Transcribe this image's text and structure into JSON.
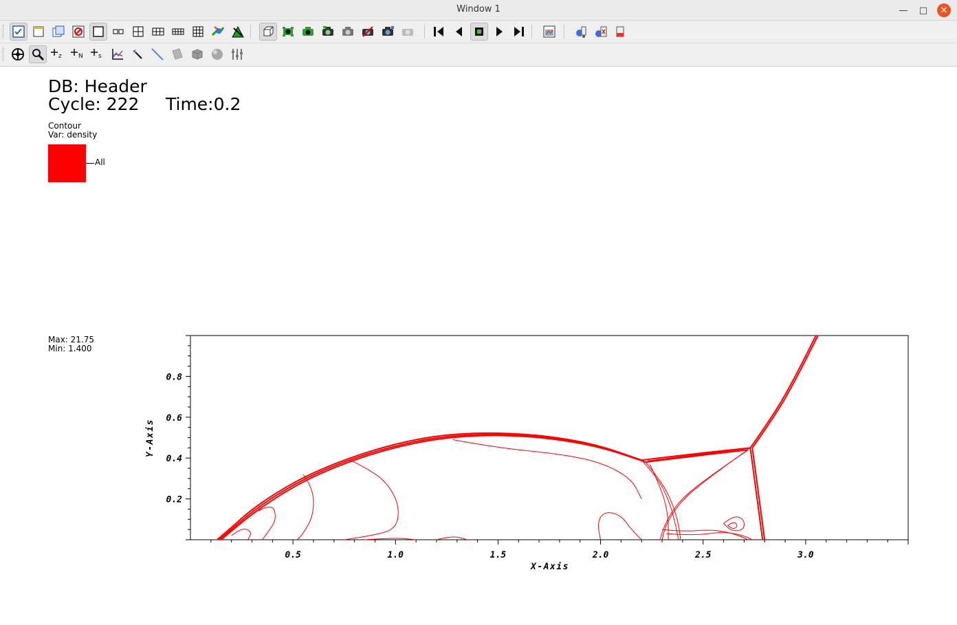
{
  "window": {
    "title": "Window 1"
  },
  "toolbar1": {
    "buttons": [
      {
        "name": "active-window-icon",
        "pressed": true
      },
      {
        "name": "new-window-icon"
      },
      {
        "name": "clone-window-icon"
      },
      {
        "name": "delete-window-icon"
      },
      {
        "name": "layout-1x1-icon",
        "pressed": true
      },
      {
        "name": "layout-1x2-icon"
      },
      {
        "name": "layout-2x2-icon"
      },
      {
        "name": "layout-2x3-icon"
      },
      {
        "name": "layout-2x4-icon"
      },
      {
        "name": "layout-3x3-icon"
      },
      {
        "name": "lock-view-icon"
      },
      {
        "name": "lock-time-icon"
      },
      {
        "name": "perspective-view-icon",
        "pressed": true
      },
      {
        "name": "draw-plots-icon"
      },
      {
        "name": "recenter-icon"
      },
      {
        "name": "save-view-icon"
      },
      {
        "name": "undo-view-icon"
      },
      {
        "name": "redo-view-icon"
      },
      {
        "name": "choose-view-icon"
      },
      {
        "name": "reset-view-icon"
      },
      {
        "name": "first-frame-icon"
      },
      {
        "name": "reverse-play-icon"
      },
      {
        "name": "stop-icon",
        "pressed": true
      },
      {
        "name": "play-icon"
      },
      {
        "name": "last-frame-icon"
      },
      {
        "name": "spin-mode-icon"
      },
      {
        "name": "invert-background-icon"
      },
      {
        "name": "mpi-engine-icon"
      },
      {
        "name": "remove-engine-icon"
      }
    ]
  },
  "toolbar2": {
    "buttons": [
      {
        "name": "navigate-mode-icon"
      },
      {
        "name": "zoom-mode-icon",
        "pressed": true
      },
      {
        "name": "zone-pick-icon",
        "label": "z"
      },
      {
        "name": "node-pick-icon",
        "label": "N"
      },
      {
        "name": "spreadsheet-pick-icon",
        "label": "s"
      },
      {
        "name": "curve-lineout-icon"
      },
      {
        "name": "point-tool-icon"
      },
      {
        "name": "line-tool-icon"
      },
      {
        "name": "plane-tool-icon"
      },
      {
        "name": "box-tool-icon"
      },
      {
        "name": "sphere-tool-icon"
      },
      {
        "name": "axis-restriction-icon"
      }
    ]
  },
  "header": {
    "db": "DB: Header",
    "cycle": "Cycle: 222",
    "time": "Time:0.2"
  },
  "legend": {
    "plot_type": "Contour",
    "var": "Var: density",
    "level_label": "All",
    "level_color": "#ff0000",
    "max": "Max: 21.75",
    "min": "Min: 1.400"
  },
  "chart_data": {
    "type": "contour",
    "xlabel": "X-Axis",
    "ylabel": "Y-Axis",
    "xlim": [
      0.0,
      3.5
    ],
    "ylim": [
      0.0,
      1.0
    ],
    "x_ticks": [
      "0.5",
      "1.0",
      "1.5",
      "2.0",
      "2.5",
      "3.0"
    ],
    "y_ticks": [
      "0.2",
      "0.4",
      "0.6",
      "0.8"
    ],
    "color": "#ff0000",
    "contours": [
      {
        "name": "bow-shock-1",
        "points": [
          [
            0.13,
            0.0
          ],
          [
            0.2,
            0.06
          ],
          [
            0.3,
            0.15
          ],
          [
            0.45,
            0.25
          ],
          [
            0.6,
            0.33
          ],
          [
            0.8,
            0.41
          ],
          [
            1.0,
            0.47
          ],
          [
            1.2,
            0.51
          ],
          [
            1.4,
            0.524
          ],
          [
            1.6,
            0.52
          ],
          [
            1.8,
            0.5
          ],
          [
            2.0,
            0.46
          ],
          [
            2.2,
            0.39
          ]
        ]
      },
      {
        "name": "bow-shock-2",
        "points": [
          [
            0.14,
            0.0
          ],
          [
            0.21,
            0.06
          ],
          [
            0.31,
            0.145
          ],
          [
            0.46,
            0.245
          ],
          [
            0.61,
            0.325
          ],
          [
            0.81,
            0.405
          ],
          [
            1.01,
            0.463
          ],
          [
            1.21,
            0.503
          ],
          [
            1.41,
            0.517
          ],
          [
            1.61,
            0.513
          ],
          [
            1.81,
            0.493
          ],
          [
            2.01,
            0.453
          ],
          [
            2.21,
            0.385
          ]
        ]
      },
      {
        "name": "bow-shock-3",
        "points": [
          [
            0.15,
            0.0
          ],
          [
            0.22,
            0.06
          ],
          [
            0.32,
            0.14
          ],
          [
            0.47,
            0.24
          ],
          [
            0.62,
            0.32
          ],
          [
            0.82,
            0.4
          ],
          [
            1.02,
            0.458
          ],
          [
            1.22,
            0.497
          ],
          [
            1.42,
            0.512
          ],
          [
            1.62,
            0.508
          ],
          [
            1.82,
            0.488
          ],
          [
            2.02,
            0.448
          ],
          [
            2.22,
            0.38
          ]
        ]
      },
      {
        "name": "upper-shock-1",
        "points": [
          [
            2.2,
            0.39
          ],
          [
            2.45,
            0.42
          ],
          [
            2.73,
            0.45
          ]
        ]
      },
      {
        "name": "upper-shock-2",
        "points": [
          [
            2.22,
            0.38
          ],
          [
            2.46,
            0.41
          ],
          [
            2.72,
            0.44
          ]
        ]
      },
      {
        "name": "upper-shock-3",
        "points": [
          [
            2.23,
            0.385
          ],
          [
            2.5,
            0.42
          ],
          [
            2.7,
            0.445
          ]
        ]
      },
      {
        "name": "oblique-shock",
        "points": [
          [
            2.73,
            0.45
          ],
          [
            2.85,
            0.62
          ],
          [
            2.95,
            0.8
          ],
          [
            3.05,
            1.0
          ]
        ]
      },
      {
        "name": "oblique-shock-b",
        "points": [
          [
            2.74,
            0.45
          ],
          [
            2.86,
            0.62
          ],
          [
            2.96,
            0.8
          ],
          [
            3.06,
            1.0
          ]
        ]
      },
      {
        "name": "mach-stem",
        "points": [
          [
            2.73,
            0.45
          ],
          [
            2.75,
            0.3
          ],
          [
            2.77,
            0.15
          ],
          [
            2.79,
            0.0
          ]
        ]
      },
      {
        "name": "mach-stem-b",
        "points": [
          [
            2.74,
            0.45
          ],
          [
            2.76,
            0.3
          ],
          [
            2.78,
            0.15
          ],
          [
            2.8,
            0.0
          ]
        ]
      },
      {
        "name": "slip-line-1",
        "points": [
          [
            2.73,
            0.45
          ],
          [
            2.55,
            0.32
          ],
          [
            2.4,
            0.2
          ],
          [
            2.32,
            0.08
          ],
          [
            2.3,
            0.0
          ]
        ]
      },
      {
        "name": "slip-line-2",
        "points": [
          [
            2.72,
            0.44
          ],
          [
            2.53,
            0.31
          ],
          [
            2.38,
            0.19
          ],
          [
            2.31,
            0.07
          ],
          [
            2.29,
            0.0
          ]
        ]
      },
      {
        "name": "reflected-1",
        "points": [
          [
            2.2,
            0.39
          ],
          [
            2.28,
            0.3
          ],
          [
            2.33,
            0.2
          ],
          [
            2.36,
            0.1
          ],
          [
            2.38,
            0.0
          ]
        ]
      },
      {
        "name": "reflected-2",
        "points": [
          [
            2.22,
            0.38
          ],
          [
            2.3,
            0.28
          ],
          [
            2.35,
            0.18
          ],
          [
            2.38,
            0.08
          ],
          [
            2.39,
            0.0
          ]
        ]
      },
      {
        "name": "reflected-3",
        "points": [
          [
            2.24,
            0.37
          ],
          [
            2.3,
            0.24
          ],
          [
            2.33,
            0.12
          ],
          [
            2.33,
            0.0
          ]
        ]
      },
      {
        "name": "wake-1",
        "points": [
          [
            2.3,
            0.05
          ],
          [
            2.4,
            0.04
          ],
          [
            2.55,
            0.05
          ],
          [
            2.65,
            0.03
          ],
          [
            2.72,
            0.0
          ]
        ]
      },
      {
        "name": "wake-2",
        "points": [
          [
            2.32,
            0.03
          ],
          [
            2.45,
            0.02
          ],
          [
            2.6,
            0.04
          ],
          [
            2.7,
            0.02
          ],
          [
            2.74,
            0.0
          ]
        ]
      },
      {
        "name": "vortex-ring",
        "points": [
          [
            2.6,
            0.08
          ],
          [
            2.65,
            0.12
          ],
          [
            2.7,
            0.1
          ],
          [
            2.7,
            0.05
          ],
          [
            2.64,
            0.04
          ],
          [
            2.6,
            0.08
          ]
        ]
      },
      {
        "name": "vortex-inner",
        "points": [
          [
            2.62,
            0.07
          ],
          [
            2.65,
            0.09
          ],
          [
            2.67,
            0.07
          ],
          [
            2.65,
            0.05
          ],
          [
            2.62,
            0.07
          ]
        ]
      },
      {
        "name": "inner-contour-a",
        "points": [
          [
            0.78,
            0.39
          ],
          [
            0.9,
            0.33
          ],
          [
            0.98,
            0.25
          ],
          [
            1.02,
            0.15
          ],
          [
            1.0,
            0.05
          ],
          [
            0.88,
            0.02
          ],
          [
            0.75,
            0.0
          ]
        ]
      },
      {
        "name": "inner-contour-b",
        "points": [
          [
            1.28,
            0.49
          ],
          [
            1.5,
            0.45
          ],
          [
            1.8,
            0.42
          ],
          [
            2.0,
            0.38
          ],
          [
            2.15,
            0.3
          ],
          [
            2.2,
            0.2
          ]
        ]
      },
      {
        "name": "inner-contour-c",
        "points": [
          [
            0.55,
            0.32
          ],
          [
            0.6,
            0.25
          ],
          [
            0.6,
            0.12
          ],
          [
            0.55,
            0.03
          ],
          [
            0.52,
            0.0
          ]
        ]
      },
      {
        "name": "inner-contour-d",
        "points": [
          [
            0.33,
            0.14
          ],
          [
            0.4,
            0.18
          ],
          [
            0.42,
            0.1
          ],
          [
            0.38,
            0.04
          ],
          [
            0.35,
            0.0
          ]
        ]
      },
      {
        "name": "inner-contour-e",
        "points": [
          [
            2.0,
            0.0
          ],
          [
            1.98,
            0.08
          ],
          [
            2.02,
            0.14
          ],
          [
            2.1,
            0.12
          ],
          [
            2.15,
            0.05
          ],
          [
            2.2,
            0.0
          ]
        ]
      },
      {
        "name": "inner-contour-f",
        "points": [
          [
            1.2,
            0.0
          ],
          [
            1.28,
            0.02
          ],
          [
            1.35,
            0.0
          ]
        ]
      },
      {
        "name": "inner-contour-g",
        "points": [
          [
            0.85,
            0.0
          ],
          [
            1.0,
            0.01
          ],
          [
            1.1,
            0.0
          ]
        ]
      },
      {
        "name": "inner-contour-h",
        "points": [
          [
            0.2,
            0.02
          ],
          [
            0.25,
            0.06
          ],
          [
            0.3,
            0.04
          ],
          [
            0.28,
            0.0
          ]
        ]
      }
    ]
  }
}
